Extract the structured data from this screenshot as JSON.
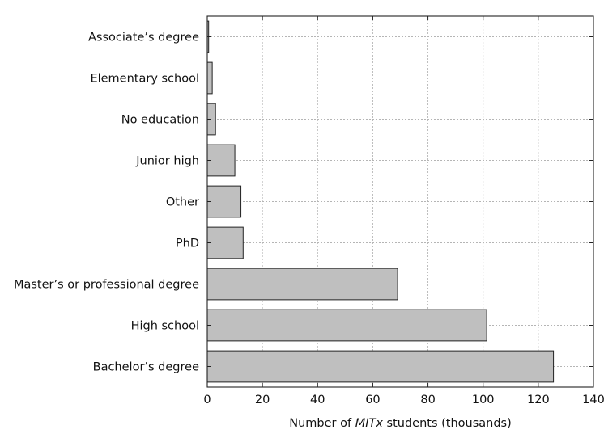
{
  "chart_data": {
    "type": "bar",
    "orientation": "horizontal",
    "categories": [
      "Associate’s degree",
      "Elementary school",
      "No education",
      "Junior high",
      "Other",
      "PhD",
      "Master’s or professional degree",
      "High school",
      "Bachelor’s degree"
    ],
    "values": [
      0.5,
      1.8,
      3,
      10,
      12.2,
      13,
      69,
      101.3,
      125.5
    ],
    "xlabel_prefix": "Number of ",
    "xlabel_italic": "MITx",
    "xlabel_suffix": " students (thousands)",
    "ylabel": "",
    "title": "",
    "xlim": [
      0,
      140
    ],
    "xticks": [
      0,
      20,
      40,
      60,
      80,
      100,
      120,
      140
    ],
    "grid": true,
    "bar_color": "#bfbfbf",
    "edge_color": "#222222"
  }
}
